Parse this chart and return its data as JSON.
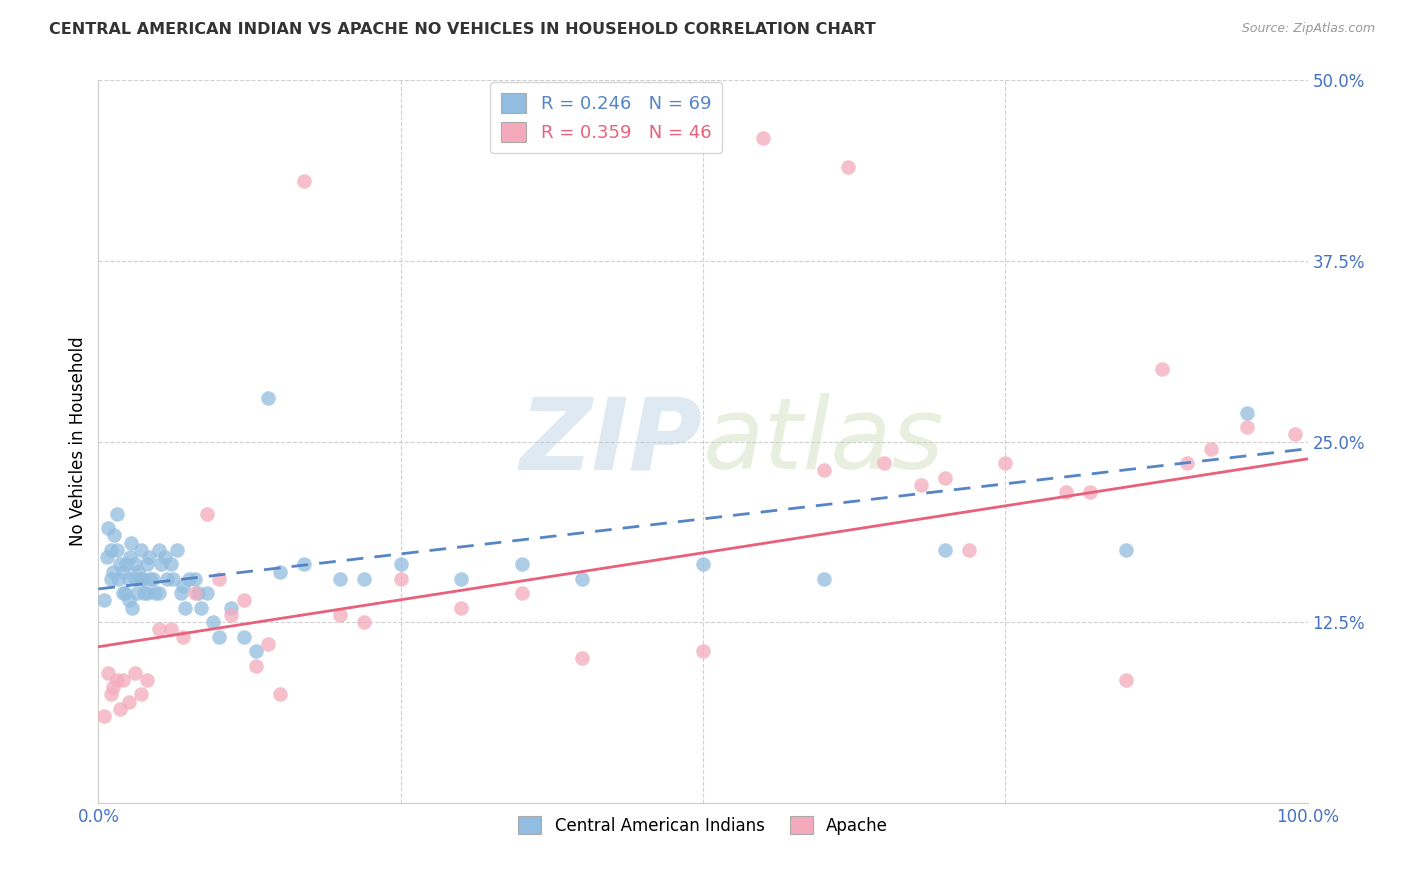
{
  "title": "CENTRAL AMERICAN INDIAN VS APACHE NO VEHICLES IN HOUSEHOLD CORRELATION CHART",
  "source": "Source: ZipAtlas.com",
  "ylabel": "No Vehicles in Household",
  "xlim": [
    0.0,
    1.0
  ],
  "ylim": [
    0.0,
    0.5
  ],
  "xticks": [
    0.0,
    0.25,
    0.5,
    0.75,
    1.0
  ],
  "xticklabels_show": [
    "0.0%",
    "",
    "",
    "",
    "100.0%"
  ],
  "yticks": [
    0.0,
    0.125,
    0.25,
    0.375,
    0.5
  ],
  "yticklabels": [
    "",
    "12.5%",
    "25.0%",
    "37.5%",
    "50.0%"
  ],
  "blue_color": "#92bde0",
  "pink_color": "#f4aabc",
  "blue_line_color": "#5585c5",
  "pink_line_color": "#e8607a",
  "legend_blue_label_r": "R = 0.246",
  "legend_blue_label_n": "N = 69",
  "legend_pink_label_r": "R = 0.359",
  "legend_pink_label_n": "N = 46",
  "legend_bottom_blue": "Central American Indians",
  "legend_bottom_pink": "Apache",
  "watermark_zip": "ZIP",
  "watermark_atlas": "atlas",
  "blue_x": [
    0.005,
    0.007,
    0.008,
    0.01,
    0.01,
    0.012,
    0.013,
    0.015,
    0.015,
    0.016,
    0.018,
    0.02,
    0.02,
    0.022,
    0.023,
    0.025,
    0.025,
    0.026,
    0.027,
    0.028,
    0.03,
    0.03,
    0.032,
    0.033,
    0.035,
    0.035,
    0.037,
    0.038,
    0.04,
    0.04,
    0.042,
    0.043,
    0.045,
    0.047,
    0.05,
    0.05,
    0.052,
    0.055,
    0.057,
    0.06,
    0.062,
    0.065,
    0.068,
    0.07,
    0.072,
    0.075,
    0.08,
    0.082,
    0.085,
    0.09,
    0.095,
    0.1,
    0.11,
    0.12,
    0.13,
    0.14,
    0.15,
    0.17,
    0.2,
    0.22,
    0.25,
    0.3,
    0.35,
    0.4,
    0.5,
    0.6,
    0.7,
    0.85,
    0.95
  ],
  "blue_y": [
    0.14,
    0.17,
    0.19,
    0.155,
    0.175,
    0.16,
    0.185,
    0.2,
    0.175,
    0.155,
    0.165,
    0.145,
    0.16,
    0.145,
    0.165,
    0.14,
    0.155,
    0.17,
    0.18,
    0.135,
    0.155,
    0.165,
    0.145,
    0.16,
    0.155,
    0.175,
    0.155,
    0.145,
    0.165,
    0.145,
    0.17,
    0.155,
    0.155,
    0.145,
    0.145,
    0.175,
    0.165,
    0.17,
    0.155,
    0.165,
    0.155,
    0.175,
    0.145,
    0.15,
    0.135,
    0.155,
    0.155,
    0.145,
    0.135,
    0.145,
    0.125,
    0.115,
    0.135,
    0.115,
    0.105,
    0.28,
    0.16,
    0.165,
    0.155,
    0.155,
    0.165,
    0.155,
    0.165,
    0.155,
    0.165,
    0.155,
    0.175,
    0.175,
    0.27
  ],
  "pink_x": [
    0.005,
    0.008,
    0.01,
    0.012,
    0.015,
    0.018,
    0.02,
    0.025,
    0.03,
    0.035,
    0.04,
    0.05,
    0.06,
    0.07,
    0.08,
    0.09,
    0.1,
    0.11,
    0.12,
    0.13,
    0.14,
    0.15,
    0.17,
    0.2,
    0.22,
    0.25,
    0.3,
    0.35,
    0.4,
    0.5,
    0.55,
    0.6,
    0.62,
    0.65,
    0.68,
    0.7,
    0.72,
    0.75,
    0.8,
    0.82,
    0.85,
    0.88,
    0.9,
    0.92,
    0.95,
    0.99
  ],
  "pink_y": [
    0.06,
    0.09,
    0.075,
    0.08,
    0.085,
    0.065,
    0.085,
    0.07,
    0.09,
    0.075,
    0.085,
    0.12,
    0.12,
    0.115,
    0.145,
    0.2,
    0.155,
    0.13,
    0.14,
    0.095,
    0.11,
    0.075,
    0.43,
    0.13,
    0.125,
    0.155,
    0.135,
    0.145,
    0.1,
    0.105,
    0.46,
    0.23,
    0.44,
    0.235,
    0.22,
    0.225,
    0.175,
    0.235,
    0.215,
    0.215,
    0.085,
    0.3,
    0.235,
    0.245,
    0.26,
    0.255
  ],
  "blue_line_start_x": 0.0,
  "blue_line_start_y": 0.148,
  "blue_line_end_x": 1.0,
  "blue_line_end_y": 0.245,
  "pink_line_start_x": 0.0,
  "pink_line_start_y": 0.108,
  "pink_line_end_x": 1.0,
  "pink_line_end_y": 0.238
}
